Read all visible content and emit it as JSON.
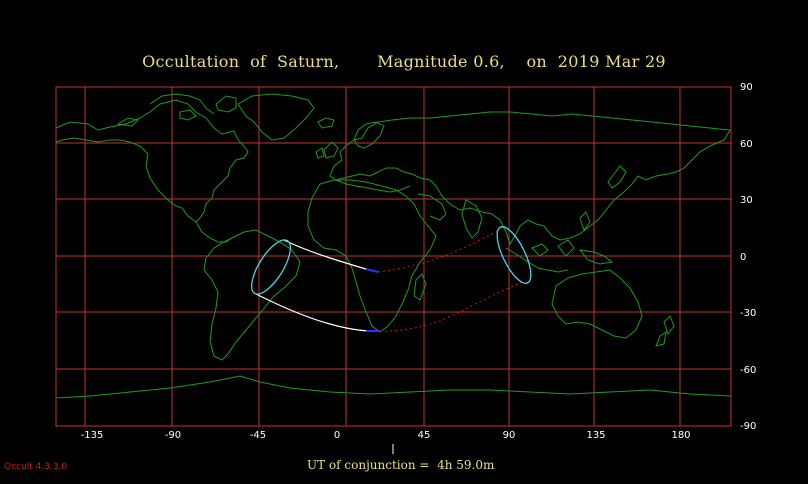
{
  "title": "Occultation  of  Saturn,       Magnitude 0.6,    on  2019 Mar 29",
  "x_axis": {
    "ticks": [
      -135,
      -90,
      -45,
      0,
      45,
      90,
      135,
      180
    ]
  },
  "y_axis": {
    "ticks": [
      90,
      60,
      30,
      0,
      -30,
      -60,
      -90
    ]
  },
  "conjunction_label": "UT of conjunction =  4h 59.0m",
  "version": "Occult 4.3.3.0",
  "colors": {
    "grid": "#c83232",
    "coast": "#1f9a1f",
    "title": "#e8e07a",
    "limit": "#ffffff",
    "limit_continuation": "#d01818",
    "rise_set_curve": "#40d8e8",
    "limit_end": "#2d2dff"
  }
}
